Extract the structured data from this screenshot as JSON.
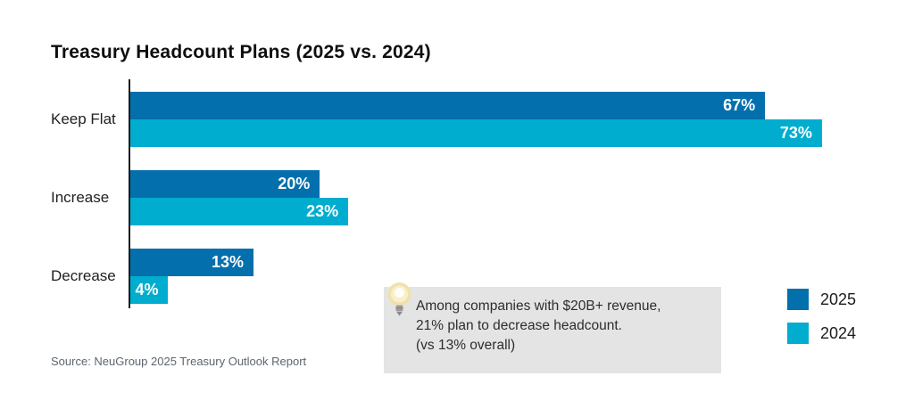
{
  "page": {
    "background": "#ffffff"
  },
  "header": {
    "title": "Treasury Headcount Plans (2025 vs. 2024)"
  },
  "chart_data": {
    "type": "bar",
    "orientation": "horizontal",
    "title": "Treasury Headcount Plans (2025 vs. 2024)",
    "categories": [
      "Keep Flat",
      "Increase",
      "Decrease"
    ],
    "series": [
      {
        "name": "2025",
        "color": "#046fad",
        "values": [
          67,
          20,
          13
        ]
      },
      {
        "name": "2024",
        "color": "#00adce",
        "values": [
          73,
          23,
          4
        ]
      }
    ],
    "value_suffix": "%",
    "xlim": [
      0,
      76.5
    ],
    "grid": false,
    "axis_color": "#1b1b1b",
    "bar_label_color": "#ffffff",
    "legend_position": "bottom-right"
  },
  "legend": {
    "items": [
      {
        "label": "2025",
        "color": "#046fad"
      },
      {
        "label": "2024",
        "color": "#00adce"
      }
    ]
  },
  "callout": {
    "icon": "lightbulb-icon",
    "background": "#e4e4e4",
    "text_lines": [
      "Among companies with $20B+ revenue,",
      "21% plan to decrease headcount.",
      "(vs 13% overall)"
    ]
  },
  "footer": {
    "source": "Source: NeuGroup 2025 Treasury Outlook Report"
  }
}
